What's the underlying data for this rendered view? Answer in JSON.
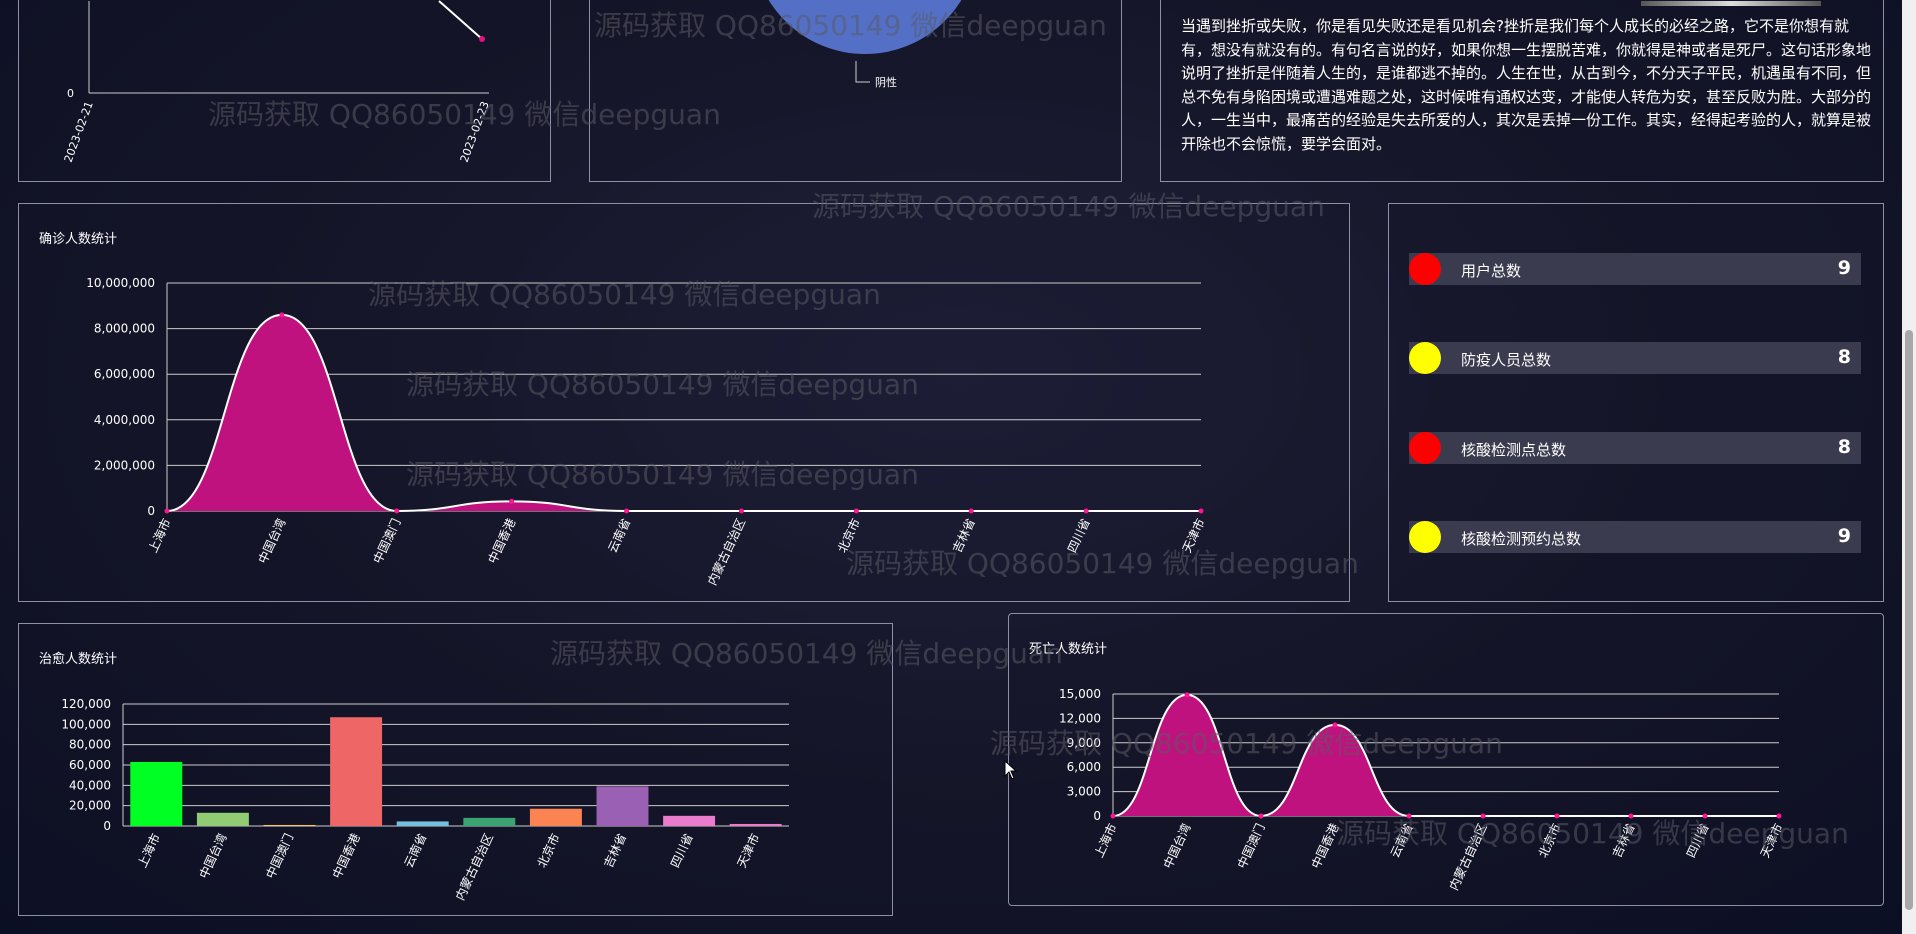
{
  "watermark_text": "源码获取 QQ86050149 微信deepguan",
  "colors": {
    "area_fill": "#c0127f",
    "grid": "#cccccc",
    "text": "#ffffff",
    "stat_red": "#ff0000",
    "stat_yellow": "#ffff00"
  },
  "line_panel": {
    "zero_label": "0",
    "x_labels": [
      "2023-02-21",
      "2023-02-23"
    ]
  },
  "pie_panel": {
    "legend_label": "阴性"
  },
  "article": {
    "text": "当遇到挫折或失败，你是看见失败还是看见机会?挫折是我们每个人成长的必经之路，它不是你想有就有，想没有就没有的。有句名言说的好，如果你想一生摆脱苦难，你就得是神或者是死尸。这句话形象地说明了挫折是伴随着人生的，是谁都逃不掉的。人生在世，从古到今，不分天子平民，机遇虽有不同，但总不免有身陷困境或遭遇难题之处，这时候唯有通权达变，才能使人转危为安，甚至反败为胜。大部分的人，一生当中，最痛苦的经验是失去所爱的人，其次是丢掉一份工作。其实，经得起考验的人，就算是被开除也不会惊慌，要学会面对。"
  },
  "stats": [
    {
      "label": "用户总数",
      "value": "9",
      "color": "#ff0000"
    },
    {
      "label": "防疫人员总数",
      "value": "8",
      "color": "#ffff00"
    },
    {
      "label": "核酸检测点总数",
      "value": "8",
      "color": "#ff0000"
    },
    {
      "label": "核酸检测预约总数",
      "value": "9",
      "color": "#ffff00"
    }
  ],
  "chart_data": [
    {
      "id": "confirmed",
      "type": "area",
      "title": "确诊人数统计",
      "categories": [
        "上海市",
        "中国台湾",
        "中国澳门",
        "中国香港",
        "云南省",
        "内蒙古自治区",
        "北京市",
        "吉林省",
        "四川省",
        "天津市"
      ],
      "values": [
        0,
        8600000,
        0,
        420000,
        0,
        0,
        0,
        0,
        0,
        0
      ],
      "yticks": [
        0,
        2000000,
        4000000,
        6000000,
        8000000,
        10000000
      ],
      "ytick_labels": [
        "0",
        "2,000,000",
        "4,000,000",
        "6,000,000",
        "8,000,000",
        "10,000,000"
      ],
      "ylim": [
        0,
        10000000
      ],
      "grid": true
    },
    {
      "id": "cured",
      "type": "bar",
      "title": "治愈人数统计",
      "categories": [
        "上海市",
        "中国台湾",
        "中国澳门",
        "中国香港",
        "云南省",
        "内蒙古自治区",
        "北京市",
        "吉林省",
        "四川省",
        "天津市"
      ],
      "values": [
        63000,
        13000,
        1000,
        107000,
        4500,
        8000,
        17000,
        39000,
        10000,
        2000
      ],
      "bar_colors": [
        "#00ff22",
        "#91cc75",
        "#fac858",
        "#ee6666",
        "#73c0de",
        "#3ba272",
        "#fc8452",
        "#9a60b4",
        "#ea7ccc",
        "#ea7ccc"
      ],
      "yticks": [
        0,
        20000,
        40000,
        60000,
        80000,
        100000,
        120000
      ],
      "ytick_labels": [
        "0",
        "20,000",
        "40,000",
        "60,000",
        "80,000",
        "100,000",
        "120,000"
      ],
      "ylim": [
        0,
        120000
      ],
      "grid": true
    },
    {
      "id": "deaths",
      "type": "area",
      "title": "死亡人数统计",
      "categories": [
        "上海市",
        "中国台湾",
        "中国澳门",
        "中国香港",
        "云南省",
        "内蒙古自治区",
        "北京市",
        "吉林省",
        "四川省",
        "天津市"
      ],
      "values": [
        0,
        14900,
        0,
        11200,
        0,
        0,
        0,
        0,
        0,
        0
      ],
      "yticks": [
        0,
        3000,
        6000,
        9000,
        12000,
        15000
      ],
      "ytick_labels": [
        "0",
        "3,000",
        "6,000",
        "9,000",
        "12,000",
        "15,000"
      ],
      "ylim": [
        0,
        15000
      ],
      "grid": true
    }
  ]
}
